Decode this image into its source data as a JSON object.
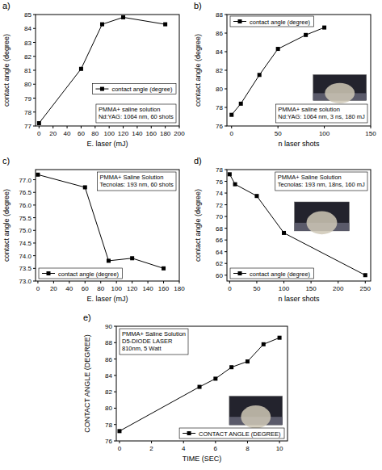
{
  "chart_data": [
    {
      "type": "line",
      "title": "a)",
      "x_label": "E. laser (mJ)",
      "y_label": "contact angle (degree)",
      "annotations": [
        "PMMA+ saline solution",
        "Nd:YAG: 1064 nm, 60 shots"
      ],
      "x": [
        0,
        60,
        90,
        120,
        180
      ],
      "series": [
        {
          "name": "contact angle (degree)",
          "color": "#000000",
          "marker": "square",
          "line_style": "solid",
          "values": [
            77.2,
            81.1,
            84.3,
            84.8,
            84.3
          ]
        }
      ],
      "xlim": [
        -5,
        200
      ],
      "ylim": [
        77,
        85
      ],
      "xticks": [
        0,
        20,
        40,
        60,
        80,
        100,
        120,
        140,
        160,
        180,
        200
      ],
      "yticks": [
        77,
        78,
        79,
        80,
        81,
        82,
        83,
        84,
        85
      ],
      "grid": false,
      "legend": "right"
    },
    {
      "type": "line",
      "title": "b)",
      "x_label": "n laser shots",
      "y_label": "contact angle (degree)",
      "annotations": [
        "PMMA+ saline solution",
        "Nd:YAG: 1064 nm, 3 ns, 180 mJ"
      ],
      "x": [
        0,
        10,
        30,
        50,
        80,
        100
      ],
      "series": [
        {
          "name": "contact angle (degree)",
          "color": "#000000",
          "marker": "square",
          "line_style": "solid",
          "values": [
            77.2,
            78.4,
            81.5,
            84.3,
            85.8,
            86.6
          ]
        }
      ],
      "xlim": [
        -5,
        150
      ],
      "ylim": [
        76,
        88
      ],
      "xticks": [
        0,
        50,
        100,
        150
      ],
      "yticks": [
        76,
        78,
        80,
        82,
        84,
        86,
        88
      ],
      "grid": false,
      "legend": "upper left"
    },
    {
      "type": "line",
      "title": "c)",
      "x_label": "E. laser (mJ)",
      "y_label": "contact angle (degree)",
      "annotations": [
        "PMMA+ Saline Solution",
        "Tecnolas: 193 nm, 60 shots"
      ],
      "x": [
        0,
        60,
        90,
        120,
        160
      ],
      "series": [
        {
          "name": "contact angle (degree)",
          "color": "#000000",
          "marker": "square",
          "line_style": "solid",
          "values": [
            77.2,
            76.7,
            73.8,
            73.9,
            73.5
          ]
        }
      ],
      "xlim": [
        -3,
        180
      ],
      "ylim": [
        73,
        77.4
      ],
      "xticks": [
        0,
        20,
        40,
        60,
        80,
        100,
        120,
        140,
        160,
        180
      ],
      "yticks": [
        {
          "value": 73,
          "label": "73.0"
        },
        73.5,
        {
          "value": 74,
          "label": "74.0"
        },
        74.5,
        {
          "value": 75,
          "label": "75.0"
        },
        75.5,
        {
          "value": 76,
          "label": "76.0"
        },
        76.5,
        {
          "value": 77,
          "label": "77.0"
        }
      ],
      "grid": false,
      "legend": "lower left"
    },
    {
      "type": "line",
      "title": "d)",
      "x_label": "n laser shots",
      "y_label": "contact angle (degree)",
      "annotations": [
        "PMMA+ Saline Solution",
        "Tecnolas: 193 nm, 18ns, 160 mJ"
      ],
      "x": [
        0,
        10,
        50,
        100,
        250
      ],
      "series": [
        {
          "name": "contact angle (degree)",
          "color": "#000000",
          "marker": "square",
          "line_style": "solid",
          "values": [
            77.2,
            75.5,
            73.5,
            67.2,
            60
          ]
        }
      ],
      "xlim": [
        -5,
        260
      ],
      "ylim": [
        59,
        78
      ],
      "xticks": [
        0,
        50,
        100,
        150,
        200,
        250
      ],
      "yticks": [
        60,
        62,
        64,
        66,
        68,
        70,
        72,
        74,
        76,
        78
      ],
      "grid": false,
      "legend": "lower left"
    },
    {
      "type": "line",
      "title": "e)",
      "x_label": "TIME (SEC)",
      "y_label": "CONTACT ANGLE (DEGREE)",
      "annotations": [
        "PMMA+ Saline Solution",
        "D5-DIODE LASER",
        "810nm, 5 Watt"
      ],
      "x": [
        0,
        5,
        6,
        7,
        8,
        9,
        10
      ],
      "series": [
        {
          "name": "CONTACT ANGLE (DEGREE)",
          "color": "#000000",
          "marker": "square",
          "line_style": "solid",
          "values": [
            77.2,
            82.6,
            83.6,
            85.0,
            85.7,
            87.8,
            88.6
          ]
        }
      ],
      "xlim": [
        -0.2,
        10.5
      ],
      "ylim": [
        76,
        90
      ],
      "xticks": [
        0,
        2,
        4,
        6,
        8,
        10
      ],
      "yticks": [
        76,
        78,
        80,
        82,
        84,
        86,
        88,
        90
      ],
      "grid": false,
      "legend": "lower right"
    }
  ]
}
